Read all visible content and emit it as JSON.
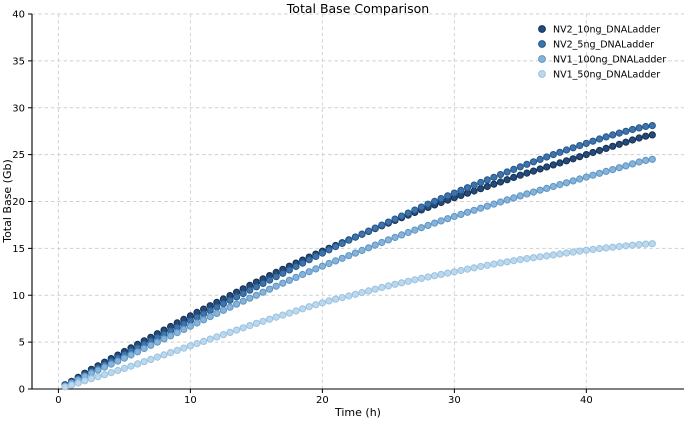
{
  "figure": {
    "background": "#ffffff",
    "spine_color": "#000000",
    "grid_color": "#cfcfcf"
  },
  "chart_data": {
    "type": "scatter",
    "title": "Total Base Comparison",
    "xlabel": "Time (h)",
    "ylabel": "Total Base (Gb)",
    "xlim": [
      -2,
      47.4
    ],
    "ylim": [
      0,
      40
    ],
    "xticks": [
      0,
      10,
      20,
      30,
      40
    ],
    "yticks": [
      0,
      5,
      10,
      15,
      20,
      25,
      30,
      35,
      40
    ],
    "grid": true,
    "grid_style": "dashed",
    "legend_position": "upper right",
    "legend_frame": false,
    "marker": "circle",
    "marker_interval_h": 0.5,
    "x_anchors_h": [
      0,
      2.5,
      5,
      7.5,
      10,
      12.5,
      15,
      17.5,
      20,
      22.5,
      25,
      27.5,
      30,
      32.5,
      35,
      37.5,
      40,
      42.5,
      45
    ],
    "series": [
      {
        "name": "NV2_10ng_DNALadder",
        "color": "#234a7c",
        "edge_color": "#16304f",
        "values": [
          0.2,
          2.1,
          4.0,
          5.9,
          7.8,
          9.6,
          11.4,
          13.1,
          14.7,
          16.2,
          17.7,
          19.1,
          20.4,
          21.6,
          22.8,
          23.9,
          25.0,
          26.1,
          27.1
        ]
      },
      {
        "name": "NV2_5ng_DNALadder",
        "color": "#3c74b0",
        "edge_color": "#275685",
        "values": [
          0.15,
          1.9,
          3.7,
          5.5,
          7.3,
          9.1,
          10.9,
          12.7,
          14.5,
          16.2,
          17.8,
          19.4,
          20.9,
          22.3,
          23.7,
          25.0,
          26.2,
          27.3,
          28.1
        ]
      },
      {
        "name": "NV1_100ng_DNALadder",
        "color": "#85b3da",
        "edge_color": "#5e94c2",
        "values": [
          0.1,
          1.7,
          3.3,
          5.0,
          6.7,
          8.4,
          10.0,
          11.6,
          13.1,
          14.5,
          15.9,
          17.2,
          18.4,
          19.5,
          20.6,
          21.6,
          22.6,
          23.6,
          24.5
        ]
      },
      {
        "name": "NV1_50ng_DNALadder",
        "color": "#bdd8ec",
        "edge_color": "#99c2e0",
        "values": [
          0.1,
          1.1,
          2.2,
          3.4,
          4.6,
          5.8,
          7.0,
          8.1,
          9.2,
          10.1,
          11.0,
          11.8,
          12.5,
          13.2,
          13.8,
          14.3,
          14.8,
          15.2,
          15.5
        ]
      }
    ]
  }
}
